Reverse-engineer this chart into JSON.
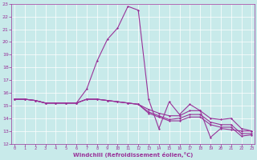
{
  "background_color": "#c8eaea",
  "line_color": "#993399",
  "xlabel": "Windchill (Refroidissement éolien,°C)",
  "xlim_min": 0,
  "xlim_max": 23,
  "ylim_min": 12,
  "ylim_max": 23,
  "yticks": [
    12,
    13,
    14,
    15,
    16,
    17,
    18,
    19,
    20,
    21,
    22,
    23
  ],
  "xticks": [
    0,
    1,
    2,
    3,
    4,
    5,
    6,
    7,
    8,
    9,
    10,
    11,
    12,
    13,
    14,
    15,
    16,
    17,
    18,
    19,
    20,
    21,
    22,
    23
  ],
  "series": [
    [
      15.5,
      15.5,
      15.4,
      15.2,
      15.2,
      15.2,
      15.2,
      16.3,
      18.5,
      20.2,
      21.1,
      22.8,
      22.5,
      15.5,
      13.2,
      15.3,
      14.3,
      15.1,
      14.6,
      12.5,
      13.2,
      13.1,
      13.0,
      13.0
    ],
    [
      15.5,
      15.5,
      15.4,
      15.2,
      15.2,
      15.2,
      15.2,
      15.5,
      15.5,
      15.4,
      15.3,
      15.2,
      15.1,
      14.7,
      14.4,
      14.2,
      14.2,
      14.6,
      14.6,
      14.0,
      13.9,
      14.0,
      13.2,
      13.0
    ],
    [
      15.5,
      15.5,
      15.4,
      15.2,
      15.2,
      15.2,
      15.2,
      15.5,
      15.5,
      15.4,
      15.3,
      15.2,
      15.1,
      14.5,
      14.2,
      13.9,
      14.0,
      14.3,
      14.3,
      13.7,
      13.5,
      13.5,
      12.8,
      12.8
    ],
    [
      15.5,
      15.5,
      15.4,
      15.2,
      15.2,
      15.2,
      15.2,
      15.5,
      15.5,
      15.4,
      15.3,
      15.2,
      15.1,
      14.4,
      14.1,
      13.8,
      13.8,
      14.1,
      14.1,
      13.5,
      13.3,
      13.3,
      12.6,
      12.7
    ]
  ]
}
